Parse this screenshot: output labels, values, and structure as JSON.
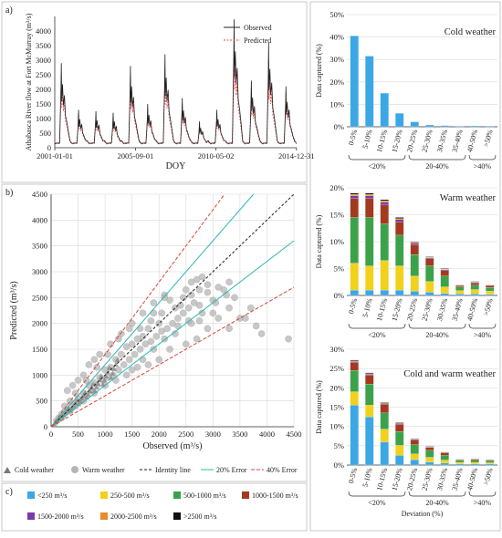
{
  "panels": {
    "a": "a)",
    "b": "b)",
    "c": "c)"
  },
  "colors": {
    "observed": "#222222",
    "predicted": "#d9534f",
    "identity": "#222222",
    "err20": "#2bb7b2",
    "err40": "#d9463a",
    "scatter": "#b5b5b5"
  },
  "chart_data": [
    {
      "type": "line",
      "ylabel": "Athabasca River flow at Fort McMurray (m³/s)",
      "xlabel": "DOY",
      "x_ticks": [
        "2001-01-01",
        "2005-09-01",
        "2010-05-02",
        "2014-12-31"
      ],
      "y_ticks": [
        0,
        500,
        1000,
        1500,
        2000,
        2500,
        3000,
        3500,
        4000
      ],
      "ylim": [
        0,
        4500
      ],
      "xlim": [
        2001.0,
        2015.0
      ],
      "legend": [
        "Observed",
        "Predicted"
      ],
      "series": [
        {
          "name": "Observed",
          "peaks": [
            {
              "year": 2001,
              "peak": 2900
            },
            {
              "year": 2002,
              "peak": 1300
            },
            {
              "year": 2003,
              "peak": 1250
            },
            {
              "year": 2004,
              "peak": 1200
            },
            {
              "year": 2005,
              "peak": 2800
            },
            {
              "year": 2006,
              "peak": 1500
            },
            {
              "year": 2007,
              "peak": 3200
            },
            {
              "year": 2008,
              "peak": 1700
            },
            {
              "year": 2009,
              "peak": 900
            },
            {
              "year": 2010,
              "peak": 1300
            },
            {
              "year": 2011,
              "peak": 4400
            },
            {
              "year": 2012,
              "peak": 2300
            },
            {
              "year": 2013,
              "peak": 3600
            },
            {
              "year": 2014,
              "peak": 2100
            }
          ]
        },
        {
          "name": "Predicted",
          "peaks": [
            {
              "year": 2001,
              "peak": 2500
            },
            {
              "year": 2002,
              "peak": 1150
            },
            {
              "year": 2003,
              "peak": 1100
            },
            {
              "year": 2004,
              "peak": 1050
            },
            {
              "year": 2005,
              "peak": 2400
            },
            {
              "year": 2006,
              "peak": 1350
            },
            {
              "year": 2007,
              "peak": 2700
            },
            {
              "year": 2008,
              "peak": 1500
            },
            {
              "year": 2009,
              "peak": 850
            },
            {
              "year": 2010,
              "peak": 1200
            },
            {
              "year": 2011,
              "peak": 3600
            },
            {
              "year": 2012,
              "peak": 2000
            },
            {
              "year": 2013,
              "peak": 3000
            },
            {
              "year": 2014,
              "peak": 1900
            }
          ]
        }
      ]
    },
    {
      "type": "scatter",
      "xlabel": "Observed (m³/s)",
      "ylabel": "Predicted (m³/s)",
      "xlim": [
        0,
        4500
      ],
      "ylim": [
        0,
        4500
      ],
      "x_ticks": [
        0,
        500,
        1000,
        1500,
        2000,
        2500,
        3000,
        3500,
        4000,
        4500
      ],
      "y_ticks": [
        0,
        500,
        1000,
        1500,
        2000,
        2500,
        3000,
        3500,
        4000,
        4500
      ],
      "reference_lines": [
        {
          "name": "Identity line",
          "slope": 1.0
        },
        {
          "name": "20% Error",
          "slope_upper": 1.2,
          "slope_lower": 0.8
        },
        {
          "name": "40% Error",
          "slope_upper": 1.4,
          "slope_lower": 0.6
        }
      ],
      "legend": [
        "Cold weather",
        "Warm weather",
        "Identity line",
        "20% Error",
        "40% Error"
      ],
      "points": [
        [
          2450,
          2500
        ],
        [
          2500,
          2650
        ],
        [
          2600,
          2800
        ],
        [
          2700,
          2850
        ],
        [
          2800,
          2900
        ],
        [
          2900,
          2600
        ],
        [
          3000,
          2450
        ],
        [
          3200,
          2650
        ],
        [
          2300,
          2300
        ],
        [
          2200,
          2450
        ],
        [
          2100,
          2550
        ],
        [
          1900,
          2200
        ],
        [
          2000,
          2000
        ],
        [
          1800,
          1900
        ],
        [
          1700,
          1750
        ],
        [
          1600,
          1700
        ],
        [
          1500,
          1600
        ],
        [
          1400,
          1550
        ],
        [
          1300,
          1400
        ],
        [
          1200,
          1300
        ],
        [
          1100,
          1150
        ],
        [
          1000,
          1100
        ],
        [
          900,
          950
        ],
        [
          800,
          850
        ],
        [
          700,
          800
        ],
        [
          600,
          650
        ],
        [
          500,
          550
        ],
        [
          400,
          450
        ],
        [
          300,
          350
        ],
        [
          200,
          250
        ],
        [
          100,
          120
        ],
        [
          150,
          180
        ],
        [
          250,
          300
        ],
        [
          350,
          300
        ],
        [
          450,
          400
        ],
        [
          550,
          500
        ],
        [
          650,
          600
        ],
        [
          750,
          700
        ],
        [
          850,
          800
        ],
        [
          950,
          900
        ],
        [
          1050,
          950
        ],
        [
          1150,
          1000
        ],
        [
          1250,
          1100
        ],
        [
          1350,
          1200
        ],
        [
          1450,
          1300
        ],
        [
          1550,
          1400
        ],
        [
          1650,
          1500
        ],
        [
          1750,
          1600
        ],
        [
          1850,
          1650
        ],
        [
          1950,
          1750
        ],
        [
          2050,
          1850
        ],
        [
          2150,
          1900
        ],
        [
          2250,
          2000
        ],
        [
          2350,
          2100
        ],
        [
          2450,
          2200
        ],
        [
          2550,
          2300
        ],
        [
          2650,
          2400
        ],
        [
          2750,
          2350
        ],
        [
          3300,
          1900
        ],
        [
          3500,
          2100
        ],
        [
          3600,
          2100
        ],
        [
          3700,
          2300
        ],
        [
          3800,
          1950
        ],
        [
          4400,
          1700
        ],
        [
          3900,
          1800
        ],
        [
          3300,
          2300
        ],
        [
          3100,
          2100
        ],
        [
          2900,
          1900
        ],
        [
          2700,
          1700
        ],
        [
          2500,
          1600
        ],
        [
          2200,
          1500
        ],
        [
          2000,
          1300
        ],
        [
          1800,
          1200
        ],
        [
          1600,
          1150
        ],
        [
          1400,
          1000
        ],
        [
          1200,
          900
        ],
        [
          1000,
          800
        ],
        [
          800,
          650
        ],
        [
          600,
          500
        ],
        [
          1100,
          1600
        ],
        [
          900,
          1400
        ],
        [
          700,
          1200
        ],
        [
          500,
          900
        ],
        [
          400,
          800
        ],
        [
          300,
          700
        ],
        [
          600,
          1000
        ],
        [
          800,
          1300
        ],
        [
          1300,
          1800
        ],
        [
          1500,
          2000
        ],
        [
          1700,
          2200
        ],
        [
          1900,
          2400
        ],
        [
          2100,
          2500
        ],
        [
          1500,
          1100
        ],
        [
          1700,
          1300
        ],
        [
          1900,
          1500
        ],
        [
          2100,
          1700
        ],
        [
          2300,
          1800
        ],
        [
          2600,
          2000
        ],
        [
          3000,
          2200
        ],
        [
          3400,
          2500
        ],
        [
          2800,
          2200
        ],
        [
          1250,
          1700
        ],
        [
          1450,
          1900
        ],
        [
          1050,
          1400
        ],
        [
          850,
          1150
        ],
        [
          650,
          900
        ],
        [
          450,
          650
        ],
        [
          350,
          500
        ],
        [
          250,
          400
        ],
        [
          1650,
          1900
        ],
        [
          1850,
          2050
        ],
        [
          2050,
          2200
        ],
        [
          2400,
          2350
        ],
        [
          2600,
          2550
        ],
        [
          2750,
          2650
        ],
        [
          2900,
          2750
        ],
        [
          3100,
          2700
        ],
        [
          3300,
          2800
        ],
        [
          2350,
          1950
        ],
        [
          2550,
          2050
        ],
        [
          2750,
          2050
        ],
        [
          3050,
          2400
        ],
        [
          3250,
          2550
        ]
      ]
    },
    {
      "type": "bar",
      "title": "Cold weather",
      "ylabel": "Data captured (%)",
      "ylim": [
        0,
        50
      ],
      "y_ticks": [
        "0%",
        "10%",
        "20%",
        "30%",
        "40%",
        "50%"
      ],
      "categories": [
        "0-5%",
        "5-10%",
        "10-15%",
        "15-20%",
        "20-25%",
        "25-30%",
        "30-35%",
        "35-40%",
        "40-50%",
        ">50%"
      ],
      "groups": [
        "<20%",
        "20-40%",
        ">40%"
      ],
      "series": [
        {
          "name": "<250 m³/s",
          "values": [
            40.5,
            31.5,
            15,
            6,
            2.2,
            0.8,
            0.5,
            0.3,
            0.4,
            0.3
          ]
        },
        {
          "name": "250-500 m³/s",
          "values": [
            0,
            0,
            0,
            0,
            0,
            0,
            0,
            0,
            0,
            0
          ]
        },
        {
          "name": "500-1000 m³/s",
          "values": [
            0,
            0,
            0,
            0,
            0,
            0,
            0,
            0,
            0,
            0
          ]
        },
        {
          "name": "1000-1500 m³/s",
          "values": [
            0,
            0,
            0,
            0,
            0,
            0,
            0,
            0,
            0,
            0
          ]
        },
        {
          "name": "1500-2000 m³/s",
          "values": [
            0,
            0,
            0,
            0,
            0,
            0,
            0,
            0,
            0,
            0
          ]
        },
        {
          "name": "2000-2500 m³/s",
          "values": [
            0,
            0,
            0,
            0,
            0,
            0,
            0,
            0,
            0,
            0
          ]
        },
        {
          "name": ">2500 m³/s",
          "values": [
            0,
            0,
            0,
            0,
            0,
            0,
            0,
            0,
            0,
            0
          ]
        }
      ]
    },
    {
      "type": "bar",
      "title": "Warm weather",
      "ylabel": "Data captured (%)",
      "ylim": [
        0,
        20
      ],
      "y_ticks": [
        "0%",
        "5%",
        "10%",
        "15%",
        "20%"
      ],
      "categories": [
        "0-5%",
        "5-10%",
        "10-15%",
        "15-20%",
        "20-25%",
        "25-30%",
        "30-35%",
        "35-40%",
        "40-50%",
        ">50%"
      ],
      "groups": [
        "<20%",
        "20-40%",
        ">40%"
      ],
      "series": [
        {
          "name": "<250 m³/s",
          "values": [
            1,
            1,
            1,
            1,
            0.8,
            0.6,
            0.4,
            0.3,
            0.3,
            0.2
          ]
        },
        {
          "name": "250-500 m³/s",
          "values": [
            5,
            4.5,
            5.5,
            4.5,
            2.8,
            2,
            1.2,
            0.6,
            0.8,
            0.6
          ]
        },
        {
          "name": "500-1000 m³/s",
          "values": [
            8.5,
            9,
            6.8,
            5.7,
            4,
            2.9,
            2,
            0.7,
            0.8,
            0.7
          ]
        },
        {
          "name": "1000-1500 m³/s",
          "values": [
            3.5,
            3.5,
            3.5,
            2.5,
            1.8,
            1.3,
            1,
            0.2,
            0.4,
            0.3
          ]
        },
        {
          "name": "1500-2000 m³/s",
          "values": [
            0.5,
            0.5,
            0.5,
            0.4,
            0.3,
            0.2,
            0.2,
            0.1,
            0.1,
            0.1
          ]
        },
        {
          "name": "2000-2500 m³/s",
          "values": [
            0.3,
            0.3,
            0.3,
            0.2,
            0.2,
            0.1,
            0.1,
            0.1,
            0.1,
            0.1
          ]
        },
        {
          "name": ">2500 m³/s",
          "values": [
            0.2,
            0.2,
            0.2,
            0.2,
            0.1,
            0.1,
            0.1,
            0,
            0.1,
            0
          ]
        }
      ]
    },
    {
      "type": "bar",
      "title": "Cold and warm weather",
      "ylabel": "Data captured (%)",
      "xlabel": "Deviation (%)",
      "ylim": [
        0,
        30
      ],
      "y_ticks": [
        "0%",
        "5%",
        "10%",
        "15%",
        "20%",
        "25%",
        "30%"
      ],
      "categories": [
        "0-5%",
        "5-10%",
        "10-15%",
        "15-20%",
        "20-25%",
        "25-30%",
        "30-35%",
        "35-40%",
        "40-50%",
        ">50%"
      ],
      "groups": [
        "<20%",
        "20-40%",
        ">40%"
      ],
      "series": [
        {
          "name": "<250 m³/s",
          "values": [
            15.5,
            12.5,
            6,
            2.5,
            1.4,
            0.8,
            0.5,
            0.3,
            0.3,
            0.3
          ]
        },
        {
          "name": "250-500 m³/s",
          "values": [
            3.5,
            3,
            3.3,
            2.6,
            1.5,
            1.2,
            0.8,
            0.4,
            0.4,
            0.3
          ]
        },
        {
          "name": "500-1000 m³/s",
          "values": [
            5.5,
            5.5,
            4.2,
            3.6,
            2.4,
            1.8,
            1.2,
            0.5,
            0.5,
            0.5
          ]
        },
        {
          "name": "1000-1500 m³/s",
          "values": [
            2,
            2.2,
            2.2,
            1.8,
            1.2,
            0.8,
            0.7,
            0.2,
            0.3,
            0.2
          ]
        },
        {
          "name": "1500-2000 m³/s",
          "values": [
            0.3,
            0.3,
            0.3,
            0.3,
            0.2,
            0.1,
            0.1,
            0.1,
            0.1,
            0.1
          ]
        },
        {
          "name": "2000-2500 m³/s",
          "values": [
            0.2,
            0.2,
            0.2,
            0.2,
            0.1,
            0.1,
            0.1,
            0,
            0.1,
            0
          ]
        },
        {
          "name": ">2500 m³/s",
          "values": [
            0.2,
            0.2,
            0.1,
            0.1,
            0.1,
            0.1,
            0,
            0,
            0,
            0
          ]
        }
      ]
    }
  ],
  "flow_legend": [
    {
      "label": "<250 m³/s",
      "color": "#3ba7e5"
    },
    {
      "label": "250-500 m³/s",
      "color": "#f2d11c"
    },
    {
      "label": "500-1000 m³/s",
      "color": "#3ca24a"
    },
    {
      "label": "1000-1500 m³/s",
      "color": "#a33a1e"
    },
    {
      "label": "1500-2000 m³/s",
      "color": "#7c3aa8"
    },
    {
      "label": "2000-2500 m³/s",
      "color": "#e88a2e"
    },
    {
      "label": ">2500 m³/s",
      "color": "#111111"
    }
  ]
}
